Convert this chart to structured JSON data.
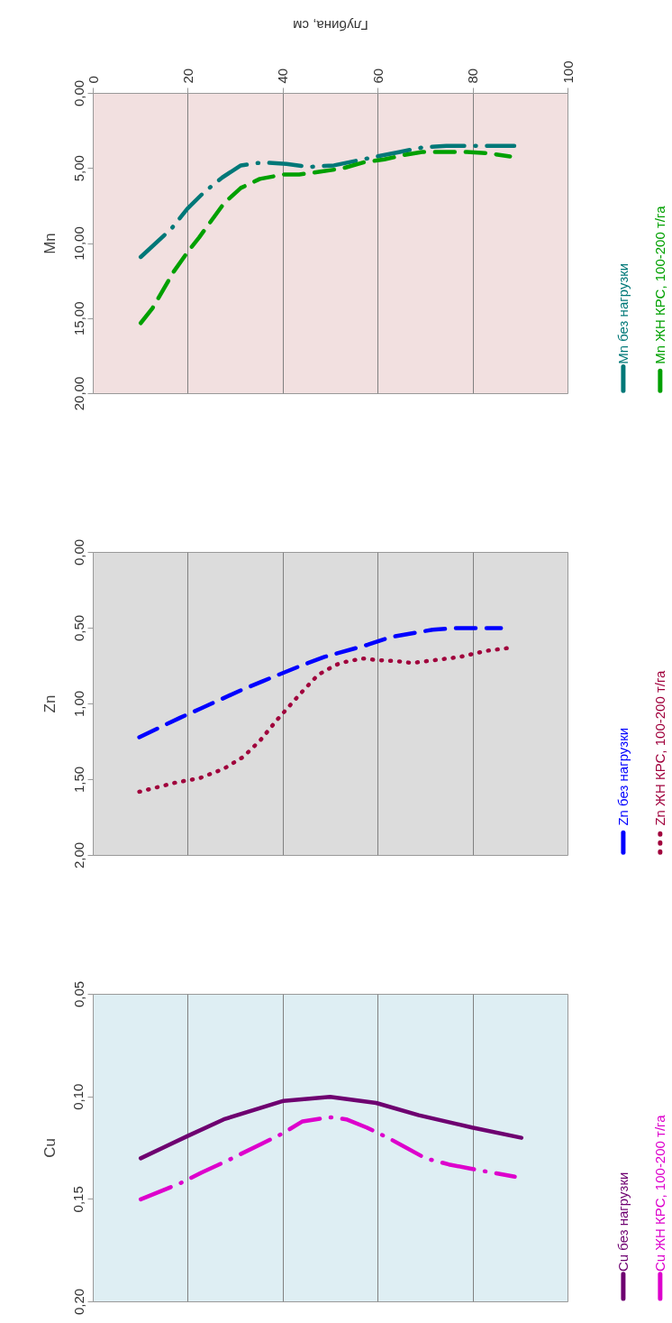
{
  "chart_data": [
    {
      "type": "line",
      "title": "Mn",
      "xlabel": "Глубина, см",
      "xlim": [
        0,
        100
      ],
      "xticks": [
        0,
        20,
        40,
        60,
        80,
        100
      ],
      "ylim": [
        20,
        0
      ],
      "yticks": [
        {
          "value": 0,
          "label": "0,00"
        },
        {
          "value": 5,
          "label": "5,00"
        },
        {
          "value": 10,
          "label": "10,00"
        },
        {
          "value": 15,
          "label": "15,00"
        },
        {
          "value": 20,
          "label": "20,00"
        }
      ],
      "grid": "x",
      "legend": "right",
      "series": [
        {
          "name": "Mn без нагрузки",
          "color": "#007878",
          "line_style": "dashdot",
          "x": [
            10,
            16.5,
            19.8,
            23.3,
            27.2,
            31.1,
            35.6,
            40.7,
            45.6,
            50.7,
            59.8,
            64.6,
            69.4,
            74.4,
            83.8,
            88.7
          ],
          "values": [
            10.9,
            9.0,
            7.7,
            6.6,
            5.6,
            4.8,
            4.6,
            4.7,
            4.9,
            4.8,
            4.2,
            3.9,
            3.6,
            3.5,
            3.5,
            3.5
          ]
        },
        {
          "name": "Mn ЖН КРС, 100-200 т/га",
          "color": "#00a000",
          "line_style": "dashed",
          "x": [
            10,
            12.5,
            16.9,
            19.8,
            22.3,
            27.6,
            31.1,
            35.1,
            40.2,
            43.4,
            48.2,
            52.5,
            56.9,
            61.3,
            65.6,
            69.3,
            74.4,
            78.7,
            83.5,
            87.8
          ],
          "values": [
            15.3,
            14.3,
            11.9,
            10.6,
            9.6,
            7.3,
            6.3,
            5.7,
            5.4,
            5.4,
            5.2,
            5.0,
            4.6,
            4.4,
            4.1,
            3.9,
            3.9,
            3.9,
            4.0,
            4.2
          ]
        }
      ]
    },
    {
      "type": "line",
      "title": "Zn",
      "xlim": [
        0,
        100
      ],
      "xticks": [
        0,
        20,
        40,
        60,
        80,
        100
      ],
      "tick_labels": "y",
      "ylim": [
        2,
        0
      ],
      "yticks": [
        {
          "value": 0,
          "label": "0,00"
        },
        {
          "value": 0.5,
          "label": "0,50"
        },
        {
          "value": 1,
          "label": "1,00"
        },
        {
          "value": 1.5,
          "label": "1,50"
        },
        {
          "value": 2,
          "label": "2,00"
        }
      ],
      "grid": "x",
      "legend": "right",
      "series": [
        {
          "name": "Zn без нагрузки",
          "color": "#0000ff",
          "line_style": "dashed",
          "x": [
            9.7,
            18.4,
            22.7,
            31.1,
            35.7,
            44.4,
            48.7,
            57.8,
            62.5,
            71.5,
            76.5,
            85.9
          ],
          "values": [
            1.22,
            1.09,
            1.03,
            0.91,
            0.85,
            0.74,
            0.69,
            0.61,
            0.56,
            0.51,
            0.5,
            0.5
          ]
        },
        {
          "name": "Zn ЖН КРС, 100-200 т/га",
          "color": "#a0003c",
          "line_style": "dotted",
          "x": [
            9.7,
            17.3,
            22.4,
            27.4,
            31.6,
            35.2,
            38.6,
            40.3,
            43.7,
            47.3,
            49.5,
            52,
            56.7,
            59.6,
            64.6,
            67.1,
            72.2,
            77.3,
            82.7,
            87.7
          ],
          "values": [
            1.58,
            1.52,
            1.49,
            1.43,
            1.35,
            1.24,
            1.11,
            1.05,
            0.93,
            0.81,
            0.77,
            0.73,
            0.7,
            0.71,
            0.72,
            0.73,
            0.71,
            0.69,
            0.65,
            0.63
          ]
        }
      ]
    },
    {
      "type": "line",
      "title": "Cu",
      "xlim": [
        0,
        100
      ],
      "xticks": [
        0,
        20,
        40,
        60,
        80,
        100
      ],
      "tick_labels": "y",
      "ylim": [
        0.2,
        0.05
      ],
      "yticks": [
        {
          "value": 0.05,
          "label": "0,05"
        },
        {
          "value": 0.1,
          "label": "0,10"
        },
        {
          "value": 0.15,
          "label": "0,15"
        },
        {
          "value": 0.2,
          "label": "0,20"
        }
      ],
      "grid": "x",
      "legend": "right",
      "series": [
        {
          "name": "Cu без нагрузки",
          "color": "#6e0070",
          "line_style": "solid",
          "x": [
            10,
            20,
            27.5,
            40.1,
            49.9,
            59.6,
            68.6,
            79.8,
            90.2
          ],
          "values": [
            0.13,
            0.119,
            0.111,
            0.102,
            0.1,
            0.103,
            0.109,
            0.115,
            0.12
          ]
        },
        {
          "name": "Cu ЖН КРС, 100-200 т/га",
          "color": "#dd00cc",
          "line_style": "dashdot",
          "x": [
            10,
            18.5,
            22.8,
            27.5,
            35.4,
            39.8,
            44.1,
            49.9,
            53.3,
            57.6,
            62.1,
            70,
            74.9,
            79.4,
            88.8
          ],
          "values": [
            0.15,
            0.142,
            0.137,
            0.132,
            0.123,
            0.118,
            0.112,
            0.11,
            0.111,
            0.115,
            0.12,
            0.13,
            0.133,
            0.135,
            0.139
          ]
        }
      ]
    }
  ]
}
